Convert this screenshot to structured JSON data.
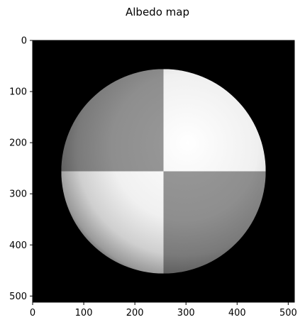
{
  "chart_data": {
    "type": "heatmap",
    "title": "Albedo map",
    "xlabel": "",
    "ylabel": "",
    "xlim": [
      0,
      512
    ],
    "ylim": [
      512,
      0
    ],
    "x_ticks": [
      0,
      100,
      200,
      300,
      400,
      500
    ],
    "y_ticks": [
      0,
      100,
      200,
      300,
      400,
      500
    ],
    "grid": false,
    "colormap": "gray",
    "background_value": 0,
    "image": {
      "description_values": {
        "sphere_center": [
          256,
          256
        ],
        "sphere_radius": 200,
        "quadrants": [
          {
            "name": "top-left",
            "albedo": 0.55
          },
          {
            "name": "top-right",
            "albedo": 1.0
          },
          {
            "name": "bottom-left",
            "albedo": 1.0
          },
          {
            "name": "bottom-right",
            "albedo": 0.55
          }
        ]
      }
    },
    "colors": {
      "background": "#000000",
      "axes_frame": "#000000",
      "figure_bg": "#ffffff"
    }
  }
}
